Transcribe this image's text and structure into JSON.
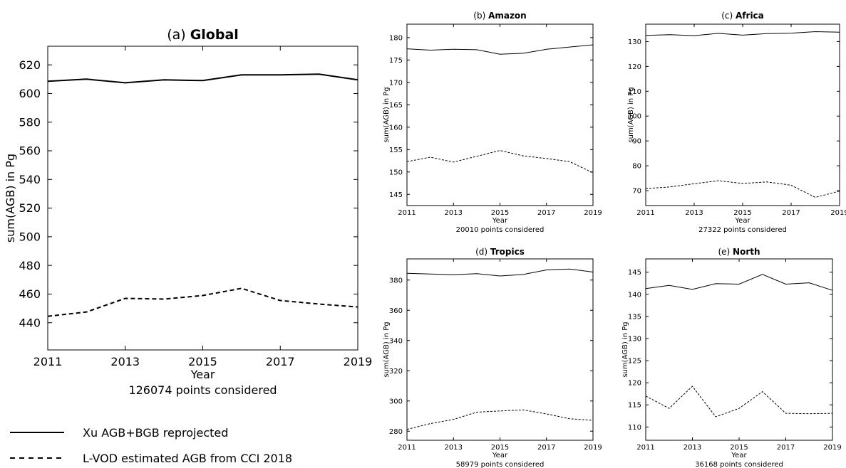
{
  "legend": {
    "placement": "bottom-left",
    "entries": [
      {
        "label": "Xu AGB+BGB reprojected",
        "style": "solid"
      },
      {
        "label": "L-VOD estimated AGB from CCI 2018",
        "style": "dashed"
      }
    ]
  },
  "chart_data": [
    {
      "type": "line",
      "title_prefix": "(a)",
      "title": "Global",
      "xlabel": "Year",
      "ylabel": "sum(AGB) in Pg",
      "note": "126074 points considered",
      "xlim": [
        2011,
        2019
      ],
      "ylim": [
        421,
        633
      ],
      "xticks": [
        2011,
        2013,
        2015,
        2017,
        2019
      ],
      "yticks": [
        440,
        460,
        480,
        500,
        520,
        540,
        560,
        580,
        600,
        620
      ],
      "x": [
        2011,
        2012,
        2013,
        2014,
        2015,
        2016,
        2017,
        2018,
        2019
      ],
      "series": [
        {
          "style": "solid",
          "values": [
            608.5,
            610,
            607.5,
            609.5,
            609,
            613,
            613,
            613.5,
            609.5
          ]
        },
        {
          "style": "dashed",
          "values": [
            444.5,
            447.5,
            457,
            456.5,
            459,
            464,
            455.5,
            453,
            451
          ]
        }
      ]
    },
    {
      "type": "line",
      "title_prefix": "(b)",
      "title": "Amazon",
      "xlabel": "Year",
      "ylabel": "sum(AGB) in Pg",
      "note": "20010 points considered",
      "xlim": [
        2011,
        2019
      ],
      "ylim": [
        142.5,
        183
      ],
      "xticks": [
        2011,
        2013,
        2015,
        2017,
        2019
      ],
      "yticks": [
        145,
        150,
        155,
        160,
        165,
        170,
        175,
        180
      ],
      "x": [
        2011,
        2012,
        2013,
        2014,
        2015,
        2016,
        2017,
        2018,
        2019
      ],
      "series": [
        {
          "style": "solid",
          "values": [
            177.5,
            177.2,
            177.4,
            177.3,
            176.3,
            176.5,
            177.4,
            177.9,
            178.4
          ]
        },
        {
          "style": "dashed",
          "values": [
            152.3,
            153.3,
            152.2,
            153.5,
            154.8,
            153.6,
            153,
            152.3,
            149.8
          ]
        }
      ]
    },
    {
      "type": "line",
      "title_prefix": "(c)",
      "title": "Africa",
      "xlabel": "Year",
      "ylabel": "sum(AGB) in Pg",
      "note": "27322 points considered",
      "xlim": [
        2011,
        2019
      ],
      "ylim": [
        64,
        137
      ],
      "xticks": [
        2011,
        2013,
        2015,
        2017,
        2019
      ],
      "yticks": [
        70,
        80,
        90,
        100,
        110,
        120,
        130
      ],
      "x": [
        2011,
        2012,
        2013,
        2014,
        2015,
        2016,
        2017,
        2018,
        2019
      ],
      "series": [
        {
          "style": "solid",
          "values": [
            132.5,
            132.8,
            132.4,
            133.3,
            132.6,
            133.2,
            133.4,
            134,
            133.8
          ]
        },
        {
          "style": "dashed",
          "values": [
            70.8,
            71.5,
            72.8,
            74,
            72.9,
            73.5,
            72.2,
            67.3,
            69.8
          ]
        }
      ]
    },
    {
      "type": "line",
      "title_prefix": "(d)",
      "title": "Tropics",
      "xlabel": "Year",
      "ylabel": "sum(AGB) in Pg",
      "note": "58979 points considered",
      "xlim": [
        2011,
        2019
      ],
      "ylim": [
        274,
        394
      ],
      "xticks": [
        2011,
        2013,
        2015,
        2017,
        2019
      ],
      "yticks": [
        280,
        300,
        320,
        340,
        360,
        380
      ],
      "x": [
        2011,
        2012,
        2013,
        2014,
        2015,
        2016,
        2017,
        2018,
        2019
      ],
      "series": [
        {
          "style": "solid",
          "values": [
            384.5,
            384,
            383.5,
            384.2,
            382.7,
            383.7,
            386.7,
            387.3,
            385.3
          ]
        },
        {
          "style": "dashed",
          "values": [
            281.2,
            285,
            287.8,
            292.6,
            293.4,
            294.1,
            291.4,
            288.2,
            287.2
          ]
        }
      ]
    },
    {
      "type": "line",
      "title_prefix": "(e)",
      "title": "North",
      "xlabel": "Year",
      "ylabel": "sum(AGB) in Pg",
      "note": "36168 points considered",
      "xlim": [
        2011,
        2019
      ],
      "ylim": [
        107,
        148
      ],
      "xticks": [
        2011,
        2013,
        2015,
        2017,
        2019
      ],
      "yticks": [
        110,
        115,
        120,
        125,
        130,
        135,
        140,
        145
      ],
      "x": [
        2011,
        2012,
        2013,
        2014,
        2015,
        2016,
        2017,
        2018,
        2019
      ],
      "series": [
        {
          "style": "solid",
          "values": [
            141.3,
            142,
            141.1,
            142.4,
            142.3,
            144.5,
            142.3,
            142.6,
            140.9
          ]
        },
        {
          "style": "dashed",
          "values": [
            117,
            114.2,
            119.2,
            112.3,
            114.2,
            118,
            113.1,
            113,
            113.1
          ]
        }
      ]
    }
  ]
}
